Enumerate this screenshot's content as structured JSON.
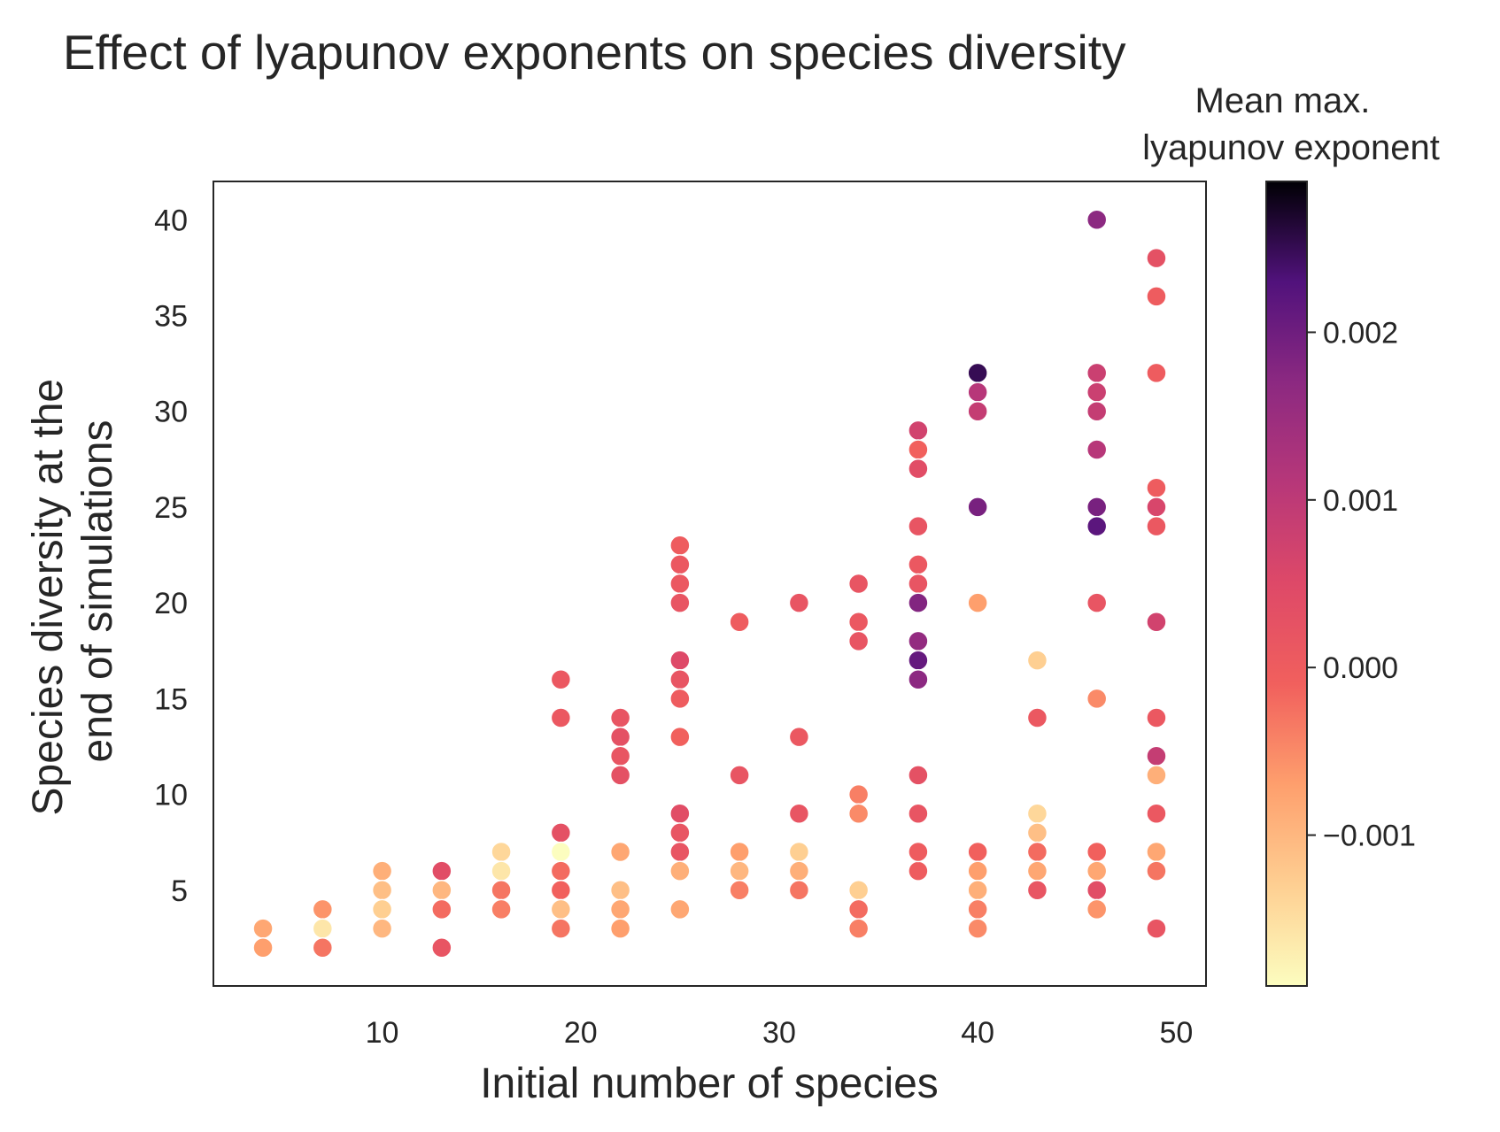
{
  "chart_data": {
    "type": "scatter",
    "title": "Effect of lyapunov exponents on species diversity",
    "xlabel": "Initial number of species",
    "ylabel": [
      "Species diversity at the",
      "end of simulations"
    ],
    "xlim": [
      1.5,
      51.5
    ],
    "ylim": [
      0,
      42
    ],
    "x_ticks": [
      10,
      20,
      30,
      40,
      50
    ],
    "y_ticks": [
      5,
      10,
      15,
      20,
      25,
      30,
      35,
      40
    ],
    "grid": false,
    "colorbar": {
      "label": [
        "Mean max.",
        "lyapunov exponent"
      ],
      "colormap": "magma_r",
      "range": [
        -0.0019,
        0.0029
      ],
      "ticks": [
        -0.001,
        0.0,
        0.001,
        0.002
      ],
      "tick_labels": [
        "−0.001",
        "0.000",
        "0.001",
        "0.002"
      ]
    },
    "points": [
      {
        "x": 4,
        "y": 3,
        "c": -0.0008
      },
      {
        "x": 4,
        "y": 2,
        "c": -0.0007
      },
      {
        "x": 7,
        "y": 4,
        "c": -0.0006
      },
      {
        "x": 7,
        "y": 3,
        "c": -0.0016
      },
      {
        "x": 7,
        "y": 2,
        "c": -0.0003
      },
      {
        "x": 10,
        "y": 6,
        "c": -0.0009
      },
      {
        "x": 10,
        "y": 5,
        "c": -0.0011
      },
      {
        "x": 10,
        "y": 4,
        "c": -0.0013
      },
      {
        "x": 10,
        "y": 3,
        "c": -0.001
      },
      {
        "x": 13,
        "y": 6,
        "c": 0.0004
      },
      {
        "x": 13,
        "y": 5,
        "c": -0.001
      },
      {
        "x": 13,
        "y": 4,
        "c": -0.0002
      },
      {
        "x": 13,
        "y": 2,
        "c": 0.0002
      },
      {
        "x": 16,
        "y": 7,
        "c": -0.0014
      },
      {
        "x": 16,
        "y": 6,
        "c": -0.0016
      },
      {
        "x": 16,
        "y": 5,
        "c": -0.0003
      },
      {
        "x": 16,
        "y": 4,
        "c": -0.0004
      },
      {
        "x": 19,
        "y": 16,
        "c": 0.0001
      },
      {
        "x": 19,
        "y": 14,
        "c": 0.0001
      },
      {
        "x": 19,
        "y": 8,
        "c": 0.0003
      },
      {
        "x": 19,
        "y": 7,
        "c": -0.0019
      },
      {
        "x": 19,
        "y": 6,
        "c": -0.0002
      },
      {
        "x": 19,
        "y": 5,
        "c": -0.0001
      },
      {
        "x": 19,
        "y": 4,
        "c": -0.0011
      },
      {
        "x": 19,
        "y": 3,
        "c": -0.0003
      },
      {
        "x": 22,
        "y": 14,
        "c": 0.0002
      },
      {
        "x": 22,
        "y": 13,
        "c": 0.0003
      },
      {
        "x": 22,
        "y": 12,
        "c": 0.0002
      },
      {
        "x": 22,
        "y": 11,
        "c": 0.0003
      },
      {
        "x": 22,
        "y": 7,
        "c": -0.0008
      },
      {
        "x": 22,
        "y": 5,
        "c": -0.0011
      },
      {
        "x": 22,
        "y": 4,
        "c": -0.0008
      },
      {
        "x": 22,
        "y": 3,
        "c": -0.0007
      },
      {
        "x": 25,
        "y": 23,
        "c": 0.0
      },
      {
        "x": 25,
        "y": 22,
        "c": 0.0001
      },
      {
        "x": 25,
        "y": 21,
        "c": 0.0001
      },
      {
        "x": 25,
        "y": 20,
        "c": 0.0002
      },
      {
        "x": 25,
        "y": 17,
        "c": 0.0005
      },
      {
        "x": 25,
        "y": 16,
        "c": 0.0002
      },
      {
        "x": 25,
        "y": 15,
        "c": 0.0
      },
      {
        "x": 25,
        "y": 13,
        "c": -0.0001
      },
      {
        "x": 25,
        "y": 9,
        "c": 0.0004
      },
      {
        "x": 25,
        "y": 8,
        "c": 0.0002
      },
      {
        "x": 25,
        "y": 7,
        "c": 0.0002
      },
      {
        "x": 25,
        "y": 6,
        "c": -0.0009
      },
      {
        "x": 25,
        "y": 4,
        "c": -0.0008
      },
      {
        "x": 28,
        "y": 19,
        "c": 0.0
      },
      {
        "x": 28,
        "y": 11,
        "c": 0.0002
      },
      {
        "x": 28,
        "y": 7,
        "c": -0.0007
      },
      {
        "x": 28,
        "y": 6,
        "c": -0.001
      },
      {
        "x": 28,
        "y": 5,
        "c": -0.0004
      },
      {
        "x": 31,
        "y": 20,
        "c": 0.0002
      },
      {
        "x": 31,
        "y": 13,
        "c": 0.0001
      },
      {
        "x": 31,
        "y": 9,
        "c": 0.0002
      },
      {
        "x": 31,
        "y": 7,
        "c": -0.0013
      },
      {
        "x": 31,
        "y": 6,
        "c": -0.0009
      },
      {
        "x": 31,
        "y": 5,
        "c": -0.0003
      },
      {
        "x": 34,
        "y": 21,
        "c": 0.0002
      },
      {
        "x": 34,
        "y": 19,
        "c": 0.0001
      },
      {
        "x": 34,
        "y": 18,
        "c": 0.0002
      },
      {
        "x": 34,
        "y": 10,
        "c": -0.0004
      },
      {
        "x": 34,
        "y": 9,
        "c": -0.0005
      },
      {
        "x": 34,
        "y": 5,
        "c": -0.0013
      },
      {
        "x": 34,
        "y": 4,
        "c": -0.0002
      },
      {
        "x": 34,
        "y": 3,
        "c": -0.0004
      },
      {
        "x": 37,
        "y": 29,
        "c": 0.0007
      },
      {
        "x": 37,
        "y": 28,
        "c": -0.0001
      },
      {
        "x": 37,
        "y": 27,
        "c": 0.0004
      },
      {
        "x": 37,
        "y": 24,
        "c": 0.0002
      },
      {
        "x": 37,
        "y": 22,
        "c": 0.0001
      },
      {
        "x": 37,
        "y": 21,
        "c": 0.0002
      },
      {
        "x": 37,
        "y": 20,
        "c": 0.0018
      },
      {
        "x": 37,
        "y": 18,
        "c": 0.0016
      },
      {
        "x": 37,
        "y": 17,
        "c": 0.0021
      },
      {
        "x": 37,
        "y": 16,
        "c": 0.0017
      },
      {
        "x": 37,
        "y": 11,
        "c": 0.0003
      },
      {
        "x": 37,
        "y": 9,
        "c": 0.0002
      },
      {
        "x": 37,
        "y": 6,
        "c": 0.0
      },
      {
        "x": 37,
        "y": 7,
        "c": 0.0
      },
      {
        "x": 40,
        "y": 32,
        "c": 0.0025
      },
      {
        "x": 40,
        "y": 31,
        "c": 0.0011
      },
      {
        "x": 40,
        "y": 30,
        "c": 0.0009
      },
      {
        "x": 40,
        "y": 25,
        "c": 0.0019
      },
      {
        "x": 40,
        "y": 20,
        "c": -0.0007
      },
      {
        "x": 40,
        "y": 7,
        "c": -0.0001
      },
      {
        "x": 40,
        "y": 6,
        "c": -0.0007
      },
      {
        "x": 40,
        "y": 5,
        "c": -0.0009
      },
      {
        "x": 40,
        "y": 4,
        "c": -0.0004
      },
      {
        "x": 40,
        "y": 3,
        "c": -0.0005
      },
      {
        "x": 43,
        "y": 17,
        "c": -0.0013
      },
      {
        "x": 43,
        "y": 14,
        "c": 0.0001
      },
      {
        "x": 43,
        "y": 9,
        "c": -0.0014
      },
      {
        "x": 43,
        "y": 8,
        "c": -0.0011
      },
      {
        "x": 43,
        "y": 7,
        "c": -0.0002
      },
      {
        "x": 43,
        "y": 6,
        "c": -0.0008
      },
      {
        "x": 43,
        "y": 5,
        "c": 0.0002
      },
      {
        "x": 46,
        "y": 40,
        "c": 0.0017
      },
      {
        "x": 46,
        "y": 32,
        "c": 0.0008
      },
      {
        "x": 46,
        "y": 31,
        "c": 0.0008
      },
      {
        "x": 46,
        "y": 30,
        "c": 0.0009
      },
      {
        "x": 46,
        "y": 28,
        "c": 0.0011
      },
      {
        "x": 46,
        "y": 25,
        "c": 0.0019
      },
      {
        "x": 46,
        "y": 24,
        "c": 0.0022
      },
      {
        "x": 46,
        "y": 20,
        "c": 0.0002
      },
      {
        "x": 46,
        "y": 15,
        "c": -0.0005
      },
      {
        "x": 46,
        "y": 7,
        "c": -0.0001
      },
      {
        "x": 46,
        "y": 6,
        "c": -0.0008
      },
      {
        "x": 46,
        "y": 5,
        "c": 0.0004
      },
      {
        "x": 46,
        "y": 4,
        "c": -0.0006
      },
      {
        "x": 49,
        "y": 38,
        "c": 0.0003
      },
      {
        "x": 49,
        "y": 36,
        "c": 0.0
      },
      {
        "x": 49,
        "y": 32,
        "c": 0.0
      },
      {
        "x": 49,
        "y": 26,
        "c": 0.0
      },
      {
        "x": 49,
        "y": 25,
        "c": 0.0006
      },
      {
        "x": 49,
        "y": 24,
        "c": 0.0001
      },
      {
        "x": 49,
        "y": 19,
        "c": 0.0007
      },
      {
        "x": 49,
        "y": 14,
        "c": 0.0001
      },
      {
        "x": 49,
        "y": 12,
        "c": 0.0009
      },
      {
        "x": 49,
        "y": 11,
        "c": -0.0009
      },
      {
        "x": 49,
        "y": 9,
        "c": 0.0001
      },
      {
        "x": 49,
        "y": 7,
        "c": -0.0008
      },
      {
        "x": 49,
        "y": 6,
        "c": -0.0003
      },
      {
        "x": 49,
        "y": 3,
        "c": 0.0002
      }
    ]
  }
}
